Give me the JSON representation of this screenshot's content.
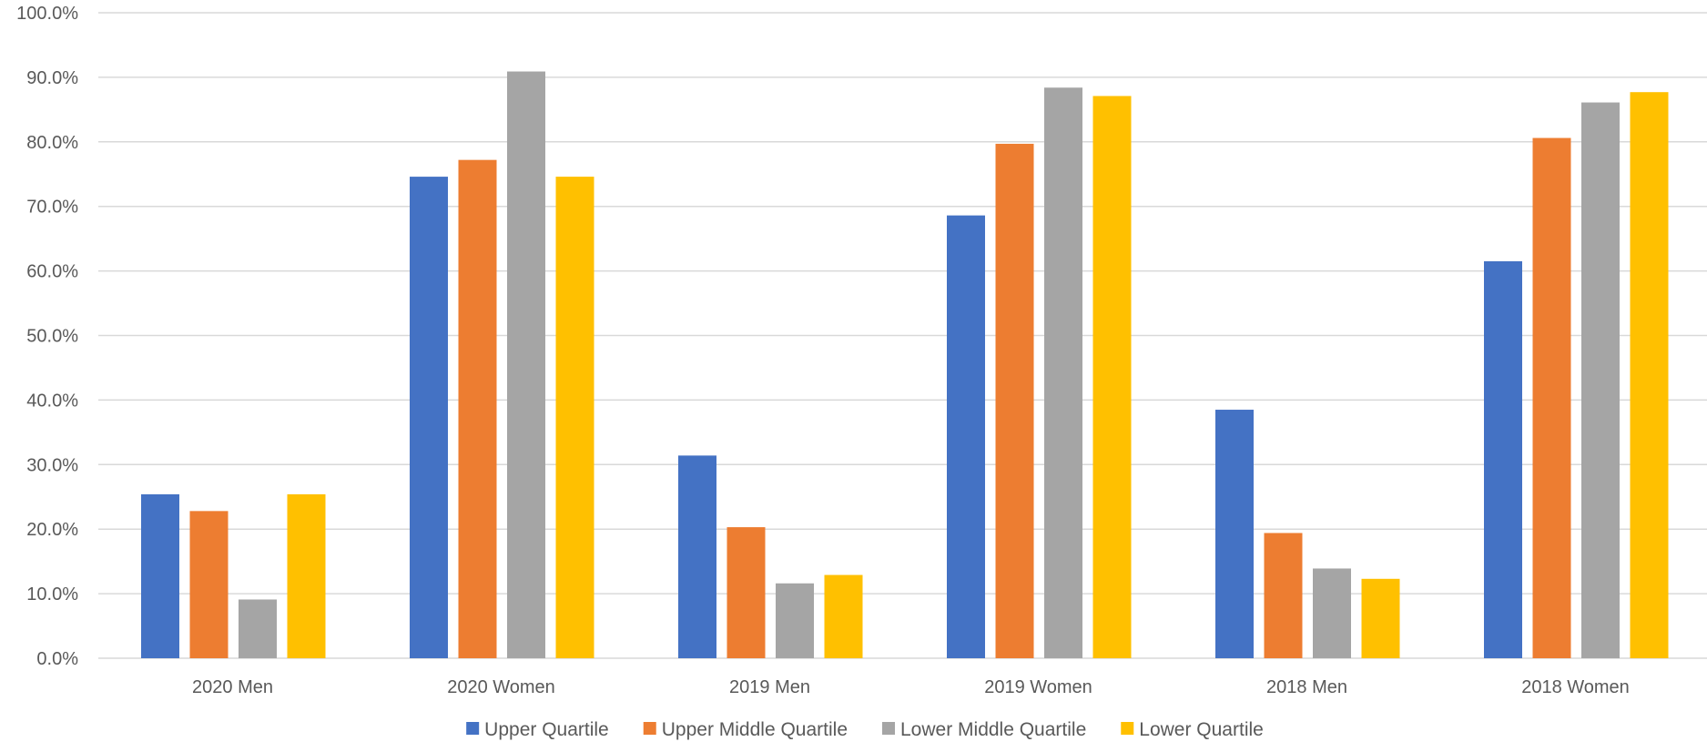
{
  "chart_data": {
    "type": "bar",
    "title": "",
    "xlabel": "",
    "ylabel": "",
    "categories": [
      "2020 Men",
      "2020 Women",
      "2019 Men",
      "2019 Women",
      "2018 Men",
      "2018 Women"
    ],
    "series": [
      {
        "name": "Upper Quartile",
        "color": "#4472C4",
        "values": [
          25.4,
          74.6,
          31.4,
          68.6,
          38.5,
          61.5
        ]
      },
      {
        "name": "Upper Middle Quartile",
        "color": "#ED7D31",
        "values": [
          22.8,
          77.2,
          20.3,
          79.7,
          19.4,
          80.6
        ]
      },
      {
        "name": "Lower Middle Quartile",
        "color": "#A5A5A5",
        "values": [
          9.1,
          90.9,
          11.6,
          88.4,
          13.9,
          86.1
        ]
      },
      {
        "name": "Lower Quartile",
        "color": "#FFC000",
        "values": [
          25.4,
          74.6,
          12.9,
          87.1,
          12.3,
          87.7
        ]
      }
    ],
    "ylim": [
      0,
      100
    ],
    "yticks": [
      "0.0%",
      "10.0%",
      "20.0%",
      "30.0%",
      "40.0%",
      "50.0%",
      "60.0%",
      "70.0%",
      "80.0%",
      "90.0%",
      "100.0%"
    ],
    "grid": true,
    "legend_position": "bottom",
    "gridline_color": "#D9D9D9"
  }
}
